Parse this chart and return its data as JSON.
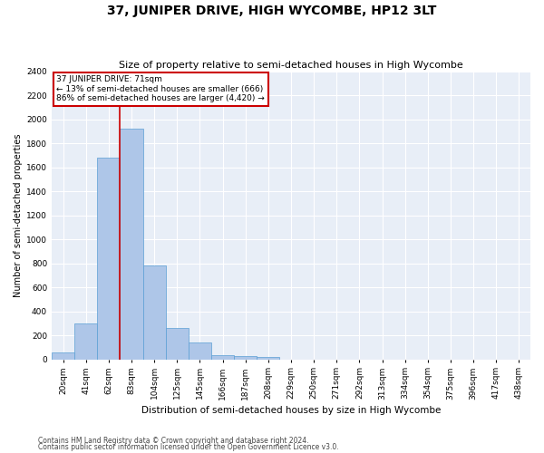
{
  "title": "37, JUNIPER DRIVE, HIGH WYCOMBE, HP12 3LT",
  "subtitle": "Size of property relative to semi-detached houses in High Wycombe",
  "xlabel": "Distribution of semi-detached houses by size in High Wycombe",
  "ylabel": "Number of semi-detached properties",
  "bar_labels": [
    "20sqm",
    "41sqm",
    "62sqm",
    "83sqm",
    "104sqm",
    "125sqm",
    "145sqm",
    "166sqm",
    "187sqm",
    "208sqm",
    "229sqm",
    "250sqm",
    "271sqm",
    "292sqm",
    "313sqm",
    "334sqm",
    "354sqm",
    "375sqm",
    "396sqm",
    "417sqm",
    "438sqm"
  ],
  "bar_values": [
    55,
    295,
    1680,
    1920,
    780,
    260,
    140,
    35,
    25,
    22,
    0,
    0,
    0,
    0,
    0,
    0,
    0,
    0,
    0,
    0,
    0
  ],
  "bar_color": "#aec6e8",
  "bar_edgecolor": "#5a9fd4",
  "property_line_label": "37 JUNIPER DRIVE: 71sqm",
  "annotation_line1": "← 13% of semi-detached houses are smaller (666)",
  "annotation_line2": "86% of semi-detached houses are larger (4,420) →",
  "annotation_box_color": "#ffffff",
  "annotation_box_edgecolor": "#cc0000",
  "vline_color": "#cc0000",
  "vline_x": 2.5,
  "ylim": [
    0,
    2400
  ],
  "yticks": [
    0,
    200,
    400,
    600,
    800,
    1000,
    1200,
    1400,
    1600,
    1800,
    2000,
    2200,
    2400
  ],
  "bg_color": "#e8eef7",
  "grid_color": "#ffffff",
  "title_fontsize": 10,
  "subtitle_fontsize": 8,
  "xlabel_fontsize": 7.5,
  "ylabel_fontsize": 7,
  "tick_fontsize": 6.5,
  "annot_fontsize": 6.5,
  "footer1": "Contains HM Land Registry data © Crown copyright and database right 2024.",
  "footer2": "Contains public sector information licensed under the Open Government Licence v3.0."
}
